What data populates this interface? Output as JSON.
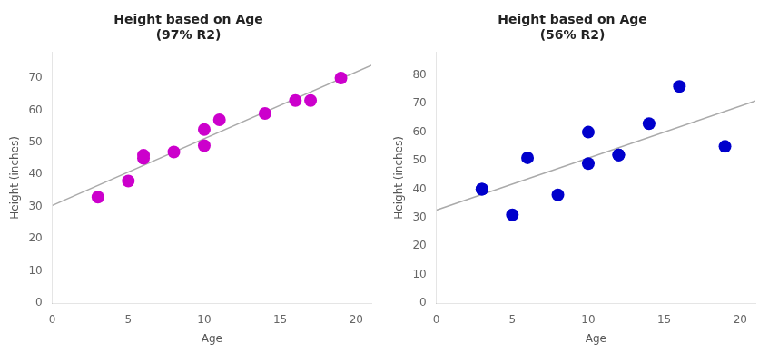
{
  "chart_data": [
    {
      "type": "scatter",
      "title": "Height based on Age\n(97% R2)",
      "x_label": "Age",
      "y_label": "Height (inches)",
      "series": [
        {
          "type": "line",
          "color": "#aaaaaa",
          "x": [
            0,
            21
          ],
          "values": [
            30.4088,
            73.9367
          ]
        },
        {
          "type": "scatter",
          "color": "#CC00CC",
          "x": [
            3,
            5,
            6,
            6,
            8,
            10,
            10,
            11,
            14,
            16,
            17,
            19
          ],
          "values": [
            33,
            38,
            45,
            46,
            47,
            49,
            54,
            57,
            59,
            63,
            63,
            70
          ]
        }
      ],
      "xlim": [
        0,
        21
      ],
      "ylim": [
        0,
        78
      ],
      "xticks": [
        0,
        5,
        10,
        15,
        20
      ],
      "yticks": [
        0,
        10,
        20,
        30,
        40,
        50,
        60,
        70
      ],
      "grid": false
    },
    {
      "type": "scatter",
      "title": "Height based on Age\n(56% R2)",
      "x_label": "Age",
      "y_label": "Height (inches)",
      "series": [
        {
          "type": "line",
          "color": "#aaaaaa",
          "x": [
            0,
            21
          ],
          "values": [
            32.6557,
            70.9418
          ]
        },
        {
          "type": "scatter",
          "color": "#0000CC",
          "x": [
            3,
            3,
            5,
            6,
            8,
            10,
            10,
            12,
            12,
            14,
            16,
            19
          ],
          "values": [
            40,
            40,
            31,
            51,
            38,
            60,
            49,
            52,
            52,
            63,
            76,
            55
          ]
        }
      ],
      "xlim": [
        0,
        21
      ],
      "ylim": [
        0,
        88
      ],
      "xticks": [
        0,
        5,
        10,
        15,
        20
      ],
      "yticks": [
        0,
        10,
        20,
        30,
        40,
        50,
        60,
        70,
        80
      ],
      "grid": false
    }
  ]
}
